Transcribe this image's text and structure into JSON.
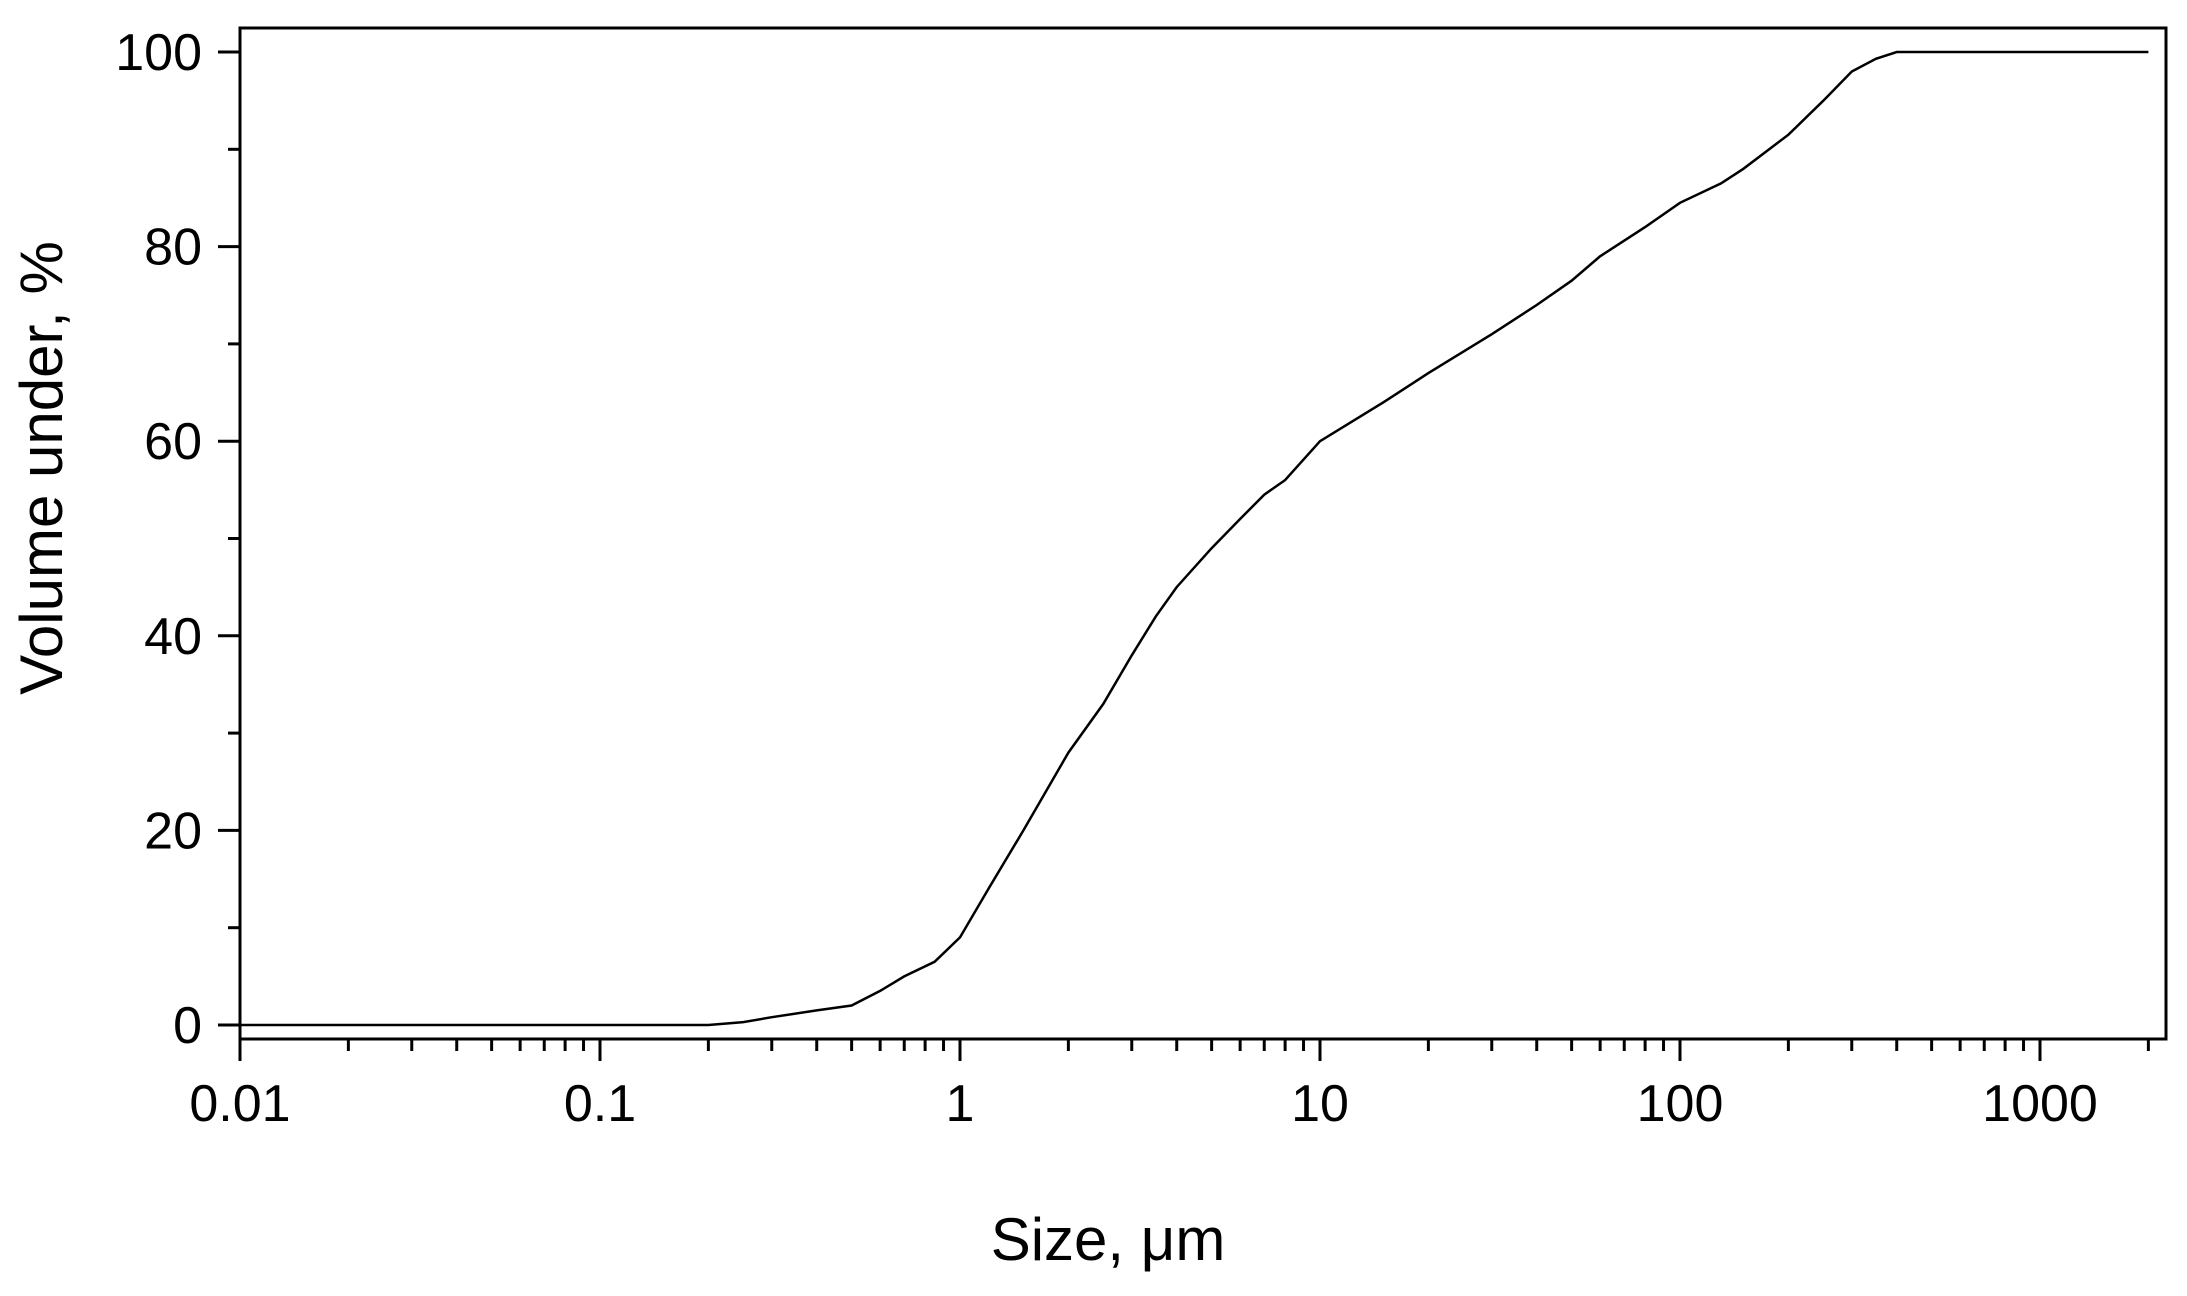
{
  "chart_data": {
    "type": "line",
    "title": "",
    "xlabel": "Size, μm",
    "ylabel": "Volume under, %",
    "xscale": "log",
    "xlim": [
      0.01,
      2000
    ],
    "ylim": [
      0,
      100
    ],
    "grid": false,
    "legend": "none",
    "x_ticks": [
      0.01,
      0.1,
      1,
      10,
      100,
      1000
    ],
    "x_tick_labels": [
      "0.01",
      "0.1",
      "1",
      "10",
      "100",
      "1000"
    ],
    "y_ticks": [
      0,
      20,
      40,
      60,
      80,
      100
    ],
    "y_tick_labels": [
      "0",
      "20",
      "40",
      "60",
      "80",
      "100"
    ],
    "series": [
      {
        "color": "#000000",
        "x": [
          0.01,
          0.05,
          0.1,
          0.2,
          0.25,
          0.3,
          0.4,
          0.5,
          0.6,
          0.7,
          0.85,
          1.0,
          1.2,
          1.5,
          2.0,
          2.5,
          3.0,
          3.5,
          4.0,
          5.0,
          6.0,
          7.0,
          8.0,
          10,
          15,
          20,
          30,
          40,
          50,
          60,
          80,
          100,
          130,
          150,
          200,
          250,
          300,
          350,
          400,
          500,
          1000,
          2000
        ],
        "y": [
          0,
          0,
          0,
          0,
          0.3,
          0.8,
          1.5,
          2.0,
          3.5,
          5.0,
          6.5,
          9.0,
          14,
          20,
          28,
          33,
          38,
          42,
          45,
          49,
          52,
          54.5,
          56,
          60,
          64,
          67,
          71,
          74,
          76.5,
          79,
          82,
          84.5,
          86.5,
          88,
          91.5,
          95,
          98,
          99.3,
          100,
          100,
          100,
          100
        ]
      }
    ]
  }
}
